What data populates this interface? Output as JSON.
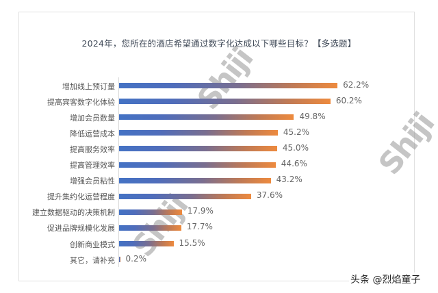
{
  "title": "2024年，您所在的酒店希望通过数字化达成以下哪些目标？【多选题】",
  "footer": "头条 @烈焰童子",
  "watermark": "Shiji",
  "colors": {
    "bar_start": "#4472c4",
    "bar_end": "#ed8a3e",
    "frame_border": "#e0e0e0",
    "title_text": "#404a58"
  },
  "bars": [
    {
      "label": "增加线上预订量",
      "value": 62.2,
      "value_label": "62.2%"
    },
    {
      "label": "提高宾客数字化体验",
      "value": 60.2,
      "value_label": "60.2%"
    },
    {
      "label": "增加会员数量",
      "value": 49.8,
      "value_label": "49.8%"
    },
    {
      "label": "降低运营成本",
      "value": 45.2,
      "value_label": "45.2%"
    },
    {
      "label": "提高服务效率",
      "value": 45.0,
      "value_label": "45.0%"
    },
    {
      "label": "提高管理效率",
      "value": 44.6,
      "value_label": "44.6%"
    },
    {
      "label": "增强会员粘性",
      "value": 43.2,
      "value_label": "43.2%"
    },
    {
      "label": "提升集约化运营程度",
      "value": 37.6,
      "value_label": "37.6%"
    },
    {
      "label": "建立数据驱动的决策机制",
      "value": 17.9,
      "value_label": "17.9%"
    },
    {
      "label": "促进品牌规模化发展",
      "value": 17.7,
      "value_label": "17.7%"
    },
    {
      "label": "创新商业模式",
      "value": 15.5,
      "value_label": "15.5%"
    },
    {
      "label": "其它，请补充",
      "value": 0.2,
      "value_label": "0.2%"
    }
  ],
  "chart_data": {
    "type": "bar",
    "orientation": "horizontal",
    "title": "2024年，您所在的酒店希望通过数字化达成以下哪些目标？【多选题】",
    "categories": [
      "增加线上预订量",
      "提高宾客数字化体验",
      "增加会员数量",
      "降低运营成本",
      "提高服务效率",
      "提高管理效率",
      "增强会员粘性",
      "提升集约化运营程度",
      "建立数据驱动的决策机制",
      "促进品牌规模化发展",
      "创新商业模式",
      "其它，请补充"
    ],
    "values": [
      62.2,
      60.2,
      49.8,
      45.2,
      45.0,
      44.6,
      43.2,
      37.6,
      17.9,
      17.7,
      15.5,
      0.2
    ],
    "value_labels": [
      "62.2%",
      "60.2%",
      "49.8%",
      "45.2%",
      "45.0%",
      "44.6%",
      "43.2%",
      "37.6%",
      "17.9%",
      "17.7%",
      "15.5%",
      "0.2%"
    ],
    "xlabel": "",
    "ylabel": "",
    "unit": "%",
    "grid": false,
    "legend": null,
    "data_labels": true
  }
}
